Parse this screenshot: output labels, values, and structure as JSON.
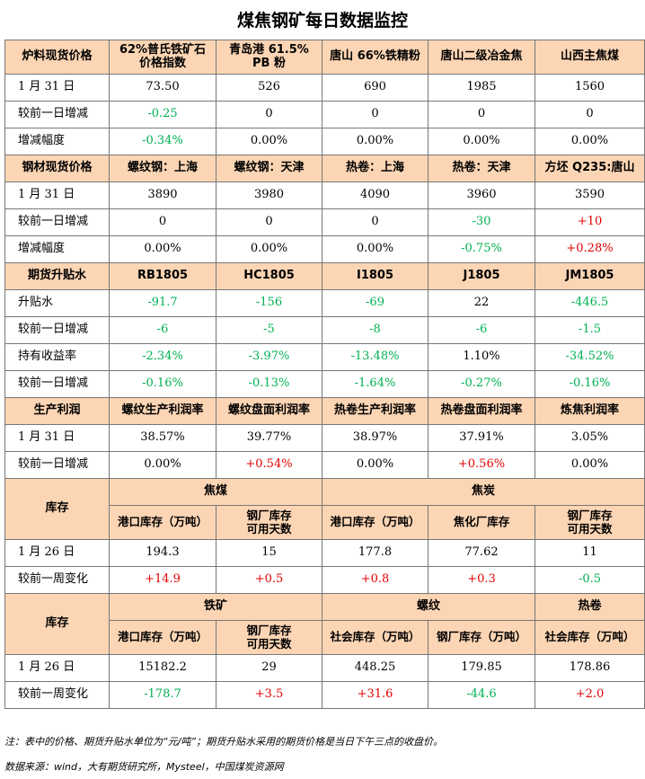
{
  "title": "煤焦钢矿每日数据监控",
  "sec1": {
    "label": "炉料现货价格",
    "cols": [
      "62%普氏铁矿石\n价格指数",
      "青岛港 61.5%\nPB 粉",
      "唐山 66%铁精粉",
      "唐山二级冶金焦",
      "山西主焦煤"
    ],
    "rows": [
      {
        "label": "1 月 31 日",
        "cells": [
          "73.50",
          "526",
          "690",
          "1985",
          "1560"
        ]
      },
      {
        "label": "较前一日增减",
        "cells": [
          "-0.25",
          "0",
          "0",
          "0",
          "0"
        ]
      },
      {
        "label": "增减幅度",
        "cells": [
          "-0.34%",
          "0.00%",
          "0.00%",
          "0.00%",
          "0.00%"
        ]
      }
    ]
  },
  "sec2": {
    "label": "钢材现货价格",
    "cols": [
      "螺纹钢：上海",
      "螺纹钢：天津",
      "热卷：上海",
      "热卷：天津",
      "方坯 Q235:唐山"
    ],
    "rows": [
      {
        "label": "1 月 31 日",
        "cells": [
          "3890",
          "3980",
          "4090",
          "3960",
          "3590"
        ]
      },
      {
        "label": "较前一日增减",
        "cells": [
          "0",
          "0",
          "0",
          "-30",
          "+10"
        ]
      },
      {
        "label": "增减幅度",
        "cells": [
          "0.00%",
          "0.00%",
          "0.00%",
          "-0.75%",
          "+0.28%"
        ]
      }
    ]
  },
  "sec3": {
    "label": "期货升贴水",
    "cols": [
      "RB1805",
      "HC1805",
      "I1805",
      "J1805",
      "JM1805"
    ],
    "rows": [
      {
        "label": "升贴水",
        "cells": [
          "-91.7",
          "-156",
          "-69",
          "22",
          "-446.5"
        ]
      },
      {
        "label": "较前一日增减",
        "cells": [
          "-6",
          "-5",
          "-8",
          "-6",
          "-1.5"
        ]
      },
      {
        "label": "持有收益率",
        "cells": [
          "-2.34%",
          "-3.97%",
          "-13.48%",
          "1.10%",
          "-34.52%"
        ]
      },
      {
        "label": "较前一日增减",
        "cells": [
          "-0.16%",
          "-0.13%",
          "-1.64%",
          "-0.27%",
          "-0.16%"
        ]
      }
    ]
  },
  "sec4": {
    "label": "生产利润",
    "cols": [
      "螺纹生产利润率",
      "螺纹盘面利润率",
      "热卷生产利润率",
      "热卷盘面利润率",
      "炼焦利润率"
    ],
    "rows": [
      {
        "label": "1 月 31 日",
        "cells": [
          "38.57%",
          "39.77%",
          "38.97%",
          "37.91%",
          "3.05%"
        ]
      },
      {
        "label": "较前一日增减",
        "cells": [
          "0.00%",
          "+0.54%",
          "0.00%",
          "+0.56%",
          "0.00%"
        ]
      }
    ]
  },
  "sec5": {
    "label": "库存",
    "group1": "焦煤",
    "group2": "焦炭",
    "cols": [
      "港口库存（万吨）",
      "钢厂库存\n可用天数",
      "港口库存（万吨）",
      "焦化厂库存",
      "钢厂库存\n可用天数"
    ],
    "rows": [
      {
        "label": "1 月 26 日",
        "cells": [
          "194.3",
          "15",
          "177.8",
          "77.62",
          "11"
        ]
      },
      {
        "label": "较前一周变化",
        "cells": [
          "+14.9",
          "+0.5",
          "+0.8",
          "+0.3",
          "-0.5"
        ]
      }
    ]
  },
  "sec6": {
    "label": "库存",
    "group1": "铁矿",
    "group2": "螺纹",
    "group3": "热卷",
    "cols": [
      "港口库存（万吨）",
      "钢厂库存\n可用天数",
      "社会库存（万吨）",
      "钢厂库存（万吨）",
      "社会库存（万吨）"
    ],
    "rows": [
      {
        "label": "1 月 26 日",
        "cells": [
          "15182.2",
          "29",
          "448.25",
          "179.85",
          "178.86"
        ]
      },
      {
        "label": "较前一周变化",
        "cells": [
          "-178.7",
          "+3.5",
          "+31.6",
          "-44.6",
          "+2.0"
        ]
      }
    ]
  },
  "note": "注：表中的价格、期货升贴水单位为“元/吨”；期货升贴水采用的期货价格是当日下午三点的收盘价。",
  "source": "数据来源：wind，大有期货研究所，Mysteel，中国煤炭资源网",
  "colors": {
    "header_bg": "#fcd5b4",
    "positive": "#e00000",
    "negative": "#00b050"
  }
}
